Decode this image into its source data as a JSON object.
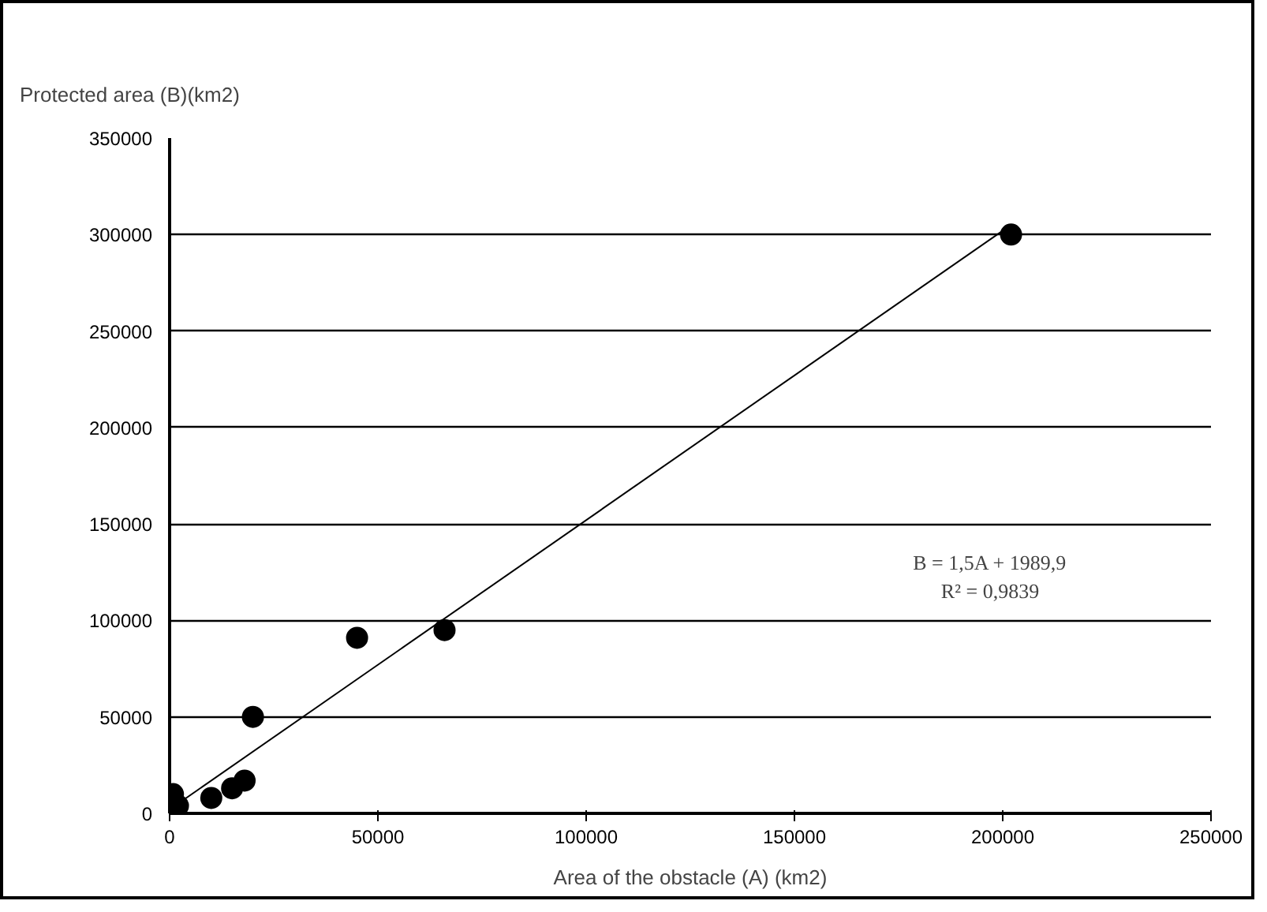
{
  "chart_data": {
    "type": "scatter",
    "ylabel": "Protected area (B)(km2)",
    "xlabel": "Area of the obstacle (A) (km2)",
    "series": [
      {
        "name": null,
        "color": "#000000",
        "marker": "circle",
        "x": [
          202000,
          66000,
          45000,
          20000,
          18000,
          15000,
          10000,
          2000,
          800
        ],
        "values": [
          300000,
          95000,
          91000,
          50000,
          17000,
          13000,
          8000,
          4000,
          10000
        ]
      },
      {
        "name": null,
        "color": "#000000",
        "type": "line",
        "x": [
          0,
          202000
        ],
        "values": [
          2000,
          305000
        ]
      }
    ],
    "annotations": [
      "B = 1,5A + 1989,9\nR² = 0,9839"
    ],
    "xlim": [
      0,
      250000
    ],
    "ylim": [
      0,
      350000
    ],
    "xticks": [
      0,
      50000,
      100000,
      150000,
      200000,
      250000
    ],
    "yticks": [
      0,
      50000,
      100000,
      150000,
      200000,
      250000,
      300000,
      350000
    ],
    "grid": "y"
  }
}
